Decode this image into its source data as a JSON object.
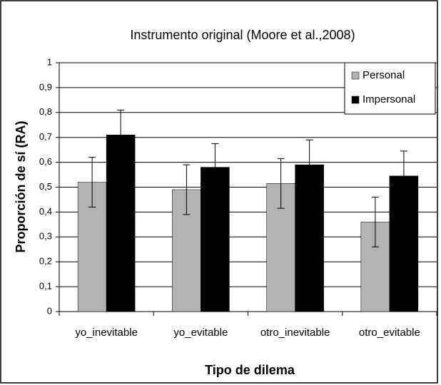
{
  "chart_data": {
    "type": "bar",
    "title": "Instrumento original (Moore et al.,2008)",
    "xlabel": "Tipo de dilema",
    "ylabel": "Proporción de sí (RA)",
    "categories": [
      "yo_inevitable",
      "yo_evitable",
      "otro_inevitable",
      "otro_evitable"
    ],
    "series": [
      {
        "name": "Personal",
        "color": "#b3b3b3",
        "values": [
          0.52,
          0.49,
          0.515,
          0.36
        ],
        "errors": [
          0.1,
          0.1,
          0.1,
          0.1
        ]
      },
      {
        "name": "Impersonal",
        "color": "#000000",
        "values": [
          0.71,
          0.58,
          0.59,
          0.545
        ],
        "errors": [
          0.1,
          0.095,
          0.1,
          0.1
        ]
      }
    ],
    "ylim": [
      0,
      1
    ],
    "yticks": [
      0,
      {
        "value": 0.1,
        "label": "0,1"
      },
      {
        "value": 0.2,
        "label": "0,2"
      },
      {
        "value": 0.3,
        "label": "0,3"
      },
      {
        "value": 0.4,
        "label": "0,4"
      },
      {
        "value": 0.5,
        "label": "0,5"
      },
      {
        "value": 0.6,
        "label": "0,6"
      },
      {
        "value": 0.7,
        "label": "0,7"
      },
      {
        "value": 0.8,
        "label": "0,8"
      },
      {
        "value": 0.9,
        "label": "0,9"
      },
      1
    ],
    "grid": true,
    "legend": "top-right"
  }
}
